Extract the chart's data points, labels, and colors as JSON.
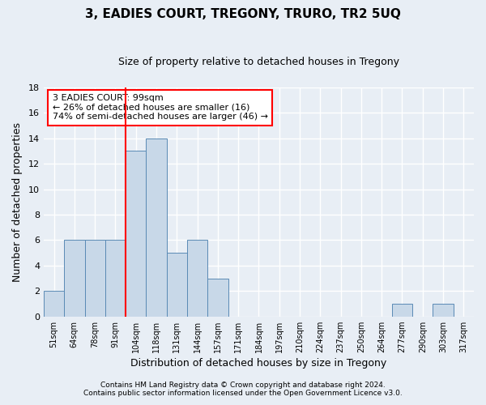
{
  "title1": "3, EADIES COURT, TREGONY, TRURO, TR2 5UQ",
  "title2": "Size of property relative to detached houses in Tregony",
  "xlabel": "Distribution of detached houses by size in Tregony",
  "ylabel": "Number of detached properties",
  "bin_labels": [
    "51sqm",
    "64sqm",
    "78sqm",
    "91sqm",
    "104sqm",
    "118sqm",
    "131sqm",
    "144sqm",
    "157sqm",
    "171sqm",
    "184sqm",
    "197sqm",
    "210sqm",
    "224sqm",
    "237sqm",
    "250sqm",
    "264sqm",
    "277sqm",
    "290sqm",
    "303sqm",
    "317sqm"
  ],
  "bar_heights": [
    2,
    6,
    6,
    6,
    13,
    14,
    5,
    6,
    3,
    0,
    0,
    0,
    0,
    0,
    0,
    0,
    0,
    1,
    0,
    1,
    0
  ],
  "bar_color": "#c8d8e8",
  "bar_edge_color": "#5a8ab5",
  "red_line_index": 4,
  "annotation_text": "3 EADIES COURT: 99sqm\n← 26% of detached houses are smaller (16)\n74% of semi-detached houses are larger (46) →",
  "annotation_box_color": "white",
  "annotation_box_edge_color": "red",
  "ylim": [
    0,
    18
  ],
  "yticks": [
    0,
    2,
    4,
    6,
    8,
    10,
    12,
    14,
    16,
    18
  ],
  "footer1": "Contains HM Land Registry data © Crown copyright and database right 2024.",
  "footer2": "Contains public sector information licensed under the Open Government Licence v3.0.",
  "bg_color": "#e8eef5",
  "plot_bg_color": "#e8eef5",
  "grid_color": "white"
}
